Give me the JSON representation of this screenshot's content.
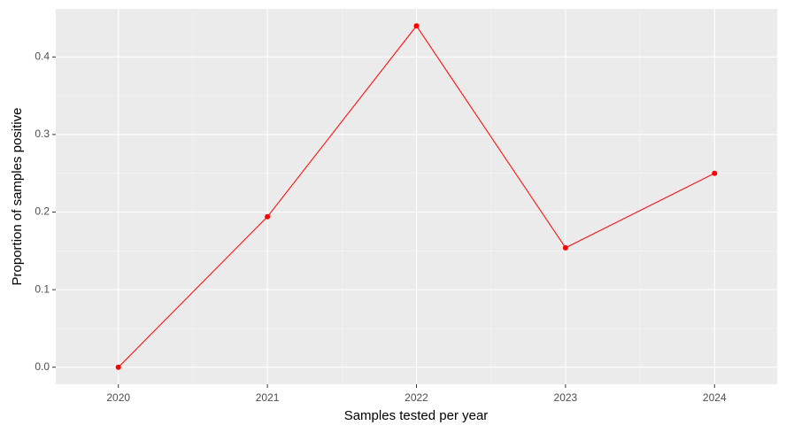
{
  "chart_data": {
    "type": "line",
    "x_label": "Samples tested per year",
    "y_label": "Proportion of samples positive",
    "x": [
      2020,
      2021,
      2022,
      2023,
      2024
    ],
    "series": [
      {
        "color": "#ff0000",
        "values": [
          0,
          0.194,
          0.44,
          0.154,
          0.25
        ]
      }
    ],
    "xlim": [
      2019.58,
      2024.42
    ],
    "xticks": [
      2020,
      2021,
      2022,
      2023,
      2024
    ],
    "ylim": [
      -0.022,
      0.462
    ],
    "yticks": [
      {
        "value": 0,
        "label": "0.0"
      },
      {
        "value": 0.1,
        "label": "0.1"
      },
      {
        "value": 0.2,
        "label": "0.2"
      },
      {
        "value": 0.3,
        "label": "0.3"
      },
      {
        "value": 0.4,
        "label": "0.4"
      }
    ],
    "grid": true
  }
}
